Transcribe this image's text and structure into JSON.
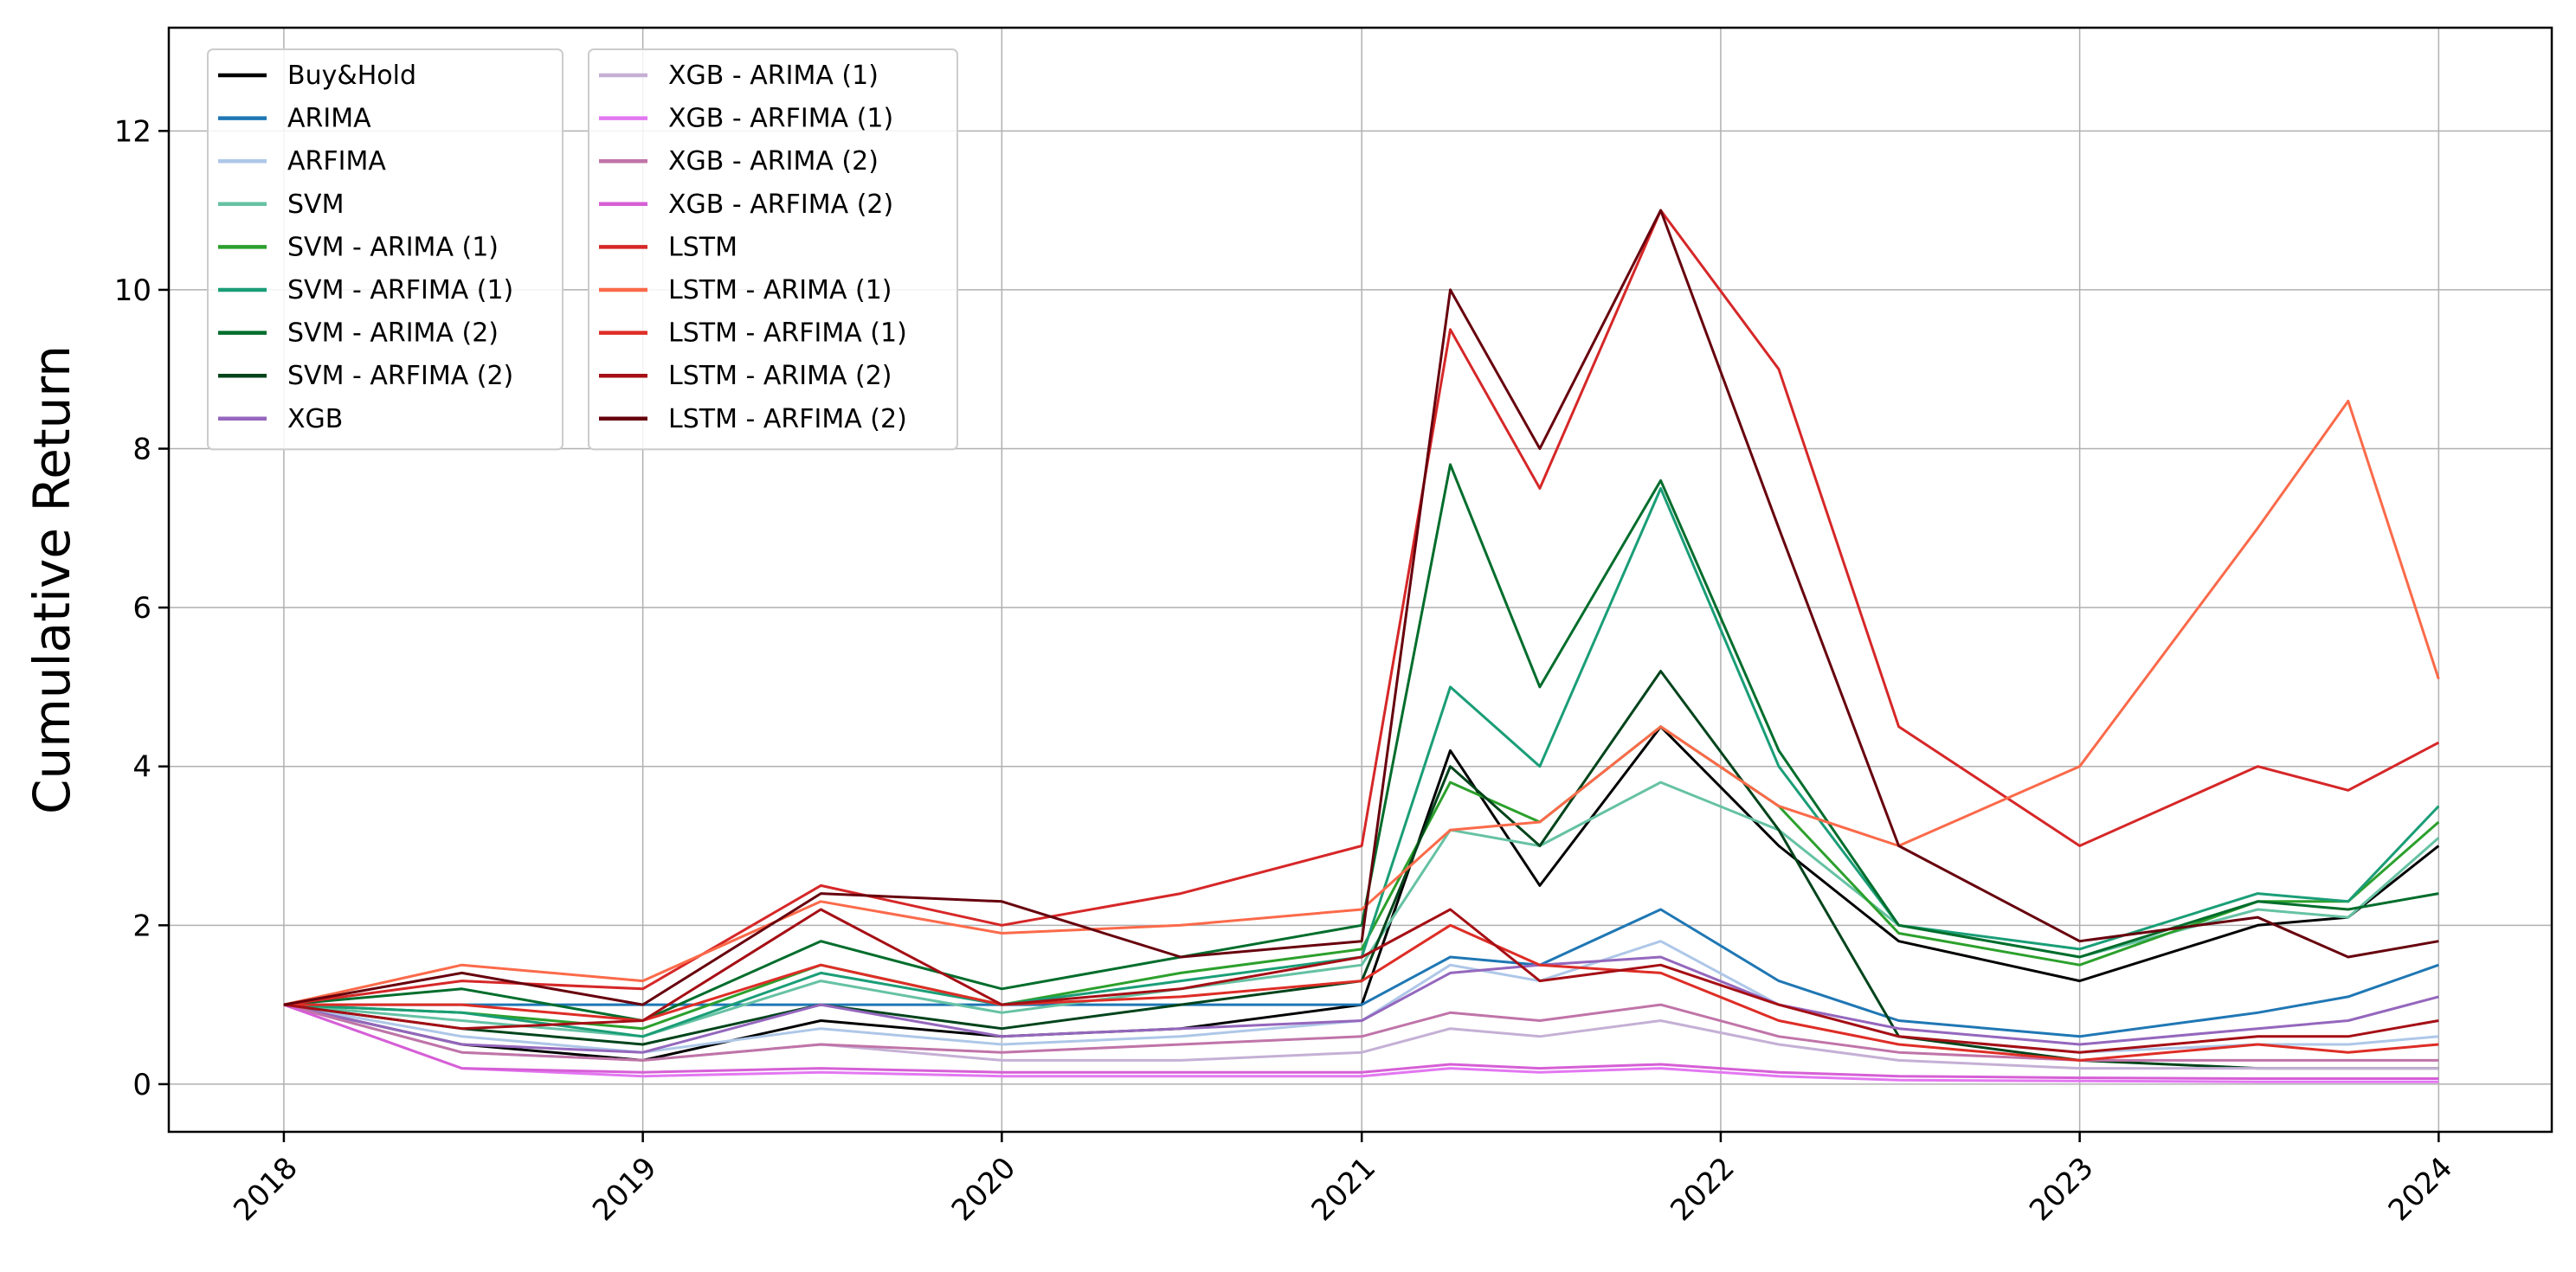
{
  "chart_data": {
    "type": "line",
    "title": "",
    "xlabel": "",
    "ylabel": "Cumulative Return",
    "xlim": [
      "2017-09-06",
      "2024-04-25"
    ],
    "ylim": [
      -0.6,
      13.3
    ],
    "x_ticks": [
      "2018",
      "2019",
      "2020",
      "2021",
      "2022",
      "2023",
      "2024"
    ],
    "y_ticks": [
      0,
      2,
      4,
      6,
      8,
      10,
      12
    ],
    "grid": true,
    "legend_placement": "top-left",
    "x": [
      "2018-01",
      "2018-07",
      "2019-01",
      "2019-07",
      "2020-01",
      "2020-07",
      "2021-01",
      "2021-04",
      "2021-07",
      "2021-11",
      "2022-03",
      "2022-07",
      "2023-01",
      "2023-07",
      "2023-10",
      "2024-01"
    ],
    "series": [
      {
        "name": "Buy&Hold",
        "color": "#000000",
        "values": [
          1.0,
          0.5,
          0.3,
          0.8,
          0.6,
          0.7,
          1.0,
          4.2,
          2.5,
          4.5,
          3.0,
          1.8,
          1.3,
          2.0,
          2.1,
          3.0
        ]
      },
      {
        "name": "ARIMA",
        "color": "#1f77b4",
        "values": [
          1.0,
          1.0,
          1.0,
          1.0,
          1.0,
          1.0,
          1.0,
          1.6,
          1.5,
          2.2,
          1.3,
          0.8,
          0.6,
          0.9,
          1.1,
          1.5
        ]
      },
      {
        "name": "ARFIMA",
        "color": "#aec7e8",
        "values": [
          1.0,
          0.6,
          0.4,
          0.7,
          0.5,
          0.6,
          0.8,
          1.5,
          1.3,
          1.8,
          1.0,
          0.6,
          0.4,
          0.5,
          0.5,
          0.6
        ]
      },
      {
        "name": "SVM",
        "color": "#66c2a4",
        "values": [
          1.0,
          0.8,
          0.6,
          1.3,
          0.9,
          1.2,
          1.5,
          3.2,
          3.0,
          3.8,
          3.2,
          2.0,
          1.6,
          2.2,
          2.1,
          3.1
        ]
      },
      {
        "name": "SVM - ARIMA (1)",
        "color": "#2ca02c",
        "values": [
          1.0,
          0.9,
          0.7,
          1.5,
          1.0,
          1.4,
          1.7,
          3.8,
          3.3,
          4.5,
          3.5,
          1.9,
          1.5,
          2.3,
          2.3,
          3.3
        ]
      },
      {
        "name": "SVM - ARFIMA (1)",
        "color": "#1a9e77",
        "values": [
          1.0,
          0.9,
          0.6,
          1.4,
          1.0,
          1.3,
          1.6,
          5.0,
          4.0,
          7.5,
          4.0,
          2.0,
          1.7,
          2.4,
          2.3,
          3.5
        ]
      },
      {
        "name": "SVM - ARIMA (2)",
        "color": "#006d2c",
        "values": [
          1.0,
          1.2,
          0.8,
          1.8,
          1.2,
          1.6,
          2.0,
          7.8,
          5.0,
          7.6,
          4.2,
          2.0,
          1.6,
          2.3,
          2.2,
          2.4
        ]
      },
      {
        "name": "SVM - ARFIMA (2)",
        "color": "#00441b",
        "values": [
          1.0,
          0.7,
          0.5,
          1.0,
          0.7,
          1.0,
          1.3,
          4.0,
          3.0,
          5.2,
          3.2,
          0.6,
          0.3,
          0.2,
          0.2,
          0.2
        ]
      },
      {
        "name": "XGB",
        "color": "#9467bd",
        "values": [
          1.0,
          0.5,
          0.4,
          1.0,
          0.6,
          0.7,
          0.8,
          1.4,
          1.5,
          1.6,
          1.0,
          0.7,
          0.5,
          0.7,
          0.8,
          1.1
        ]
      },
      {
        "name": "XGB - ARIMA (1)",
        "color": "#c5b0d5",
        "values": [
          1.0,
          0.4,
          0.3,
          0.5,
          0.3,
          0.3,
          0.4,
          0.7,
          0.6,
          0.8,
          0.5,
          0.3,
          0.2,
          0.2,
          0.2,
          0.2
        ]
      },
      {
        "name": "XGB - ARFIMA (1)",
        "color": "#e377f2",
        "values": [
          1.0,
          0.2,
          0.1,
          0.15,
          0.1,
          0.1,
          0.1,
          0.2,
          0.15,
          0.2,
          0.1,
          0.05,
          0.04,
          0.03,
          0.03,
          0.03
        ]
      },
      {
        "name": "XGB - ARIMA (2)",
        "color": "#c074a8",
        "values": [
          1.0,
          0.4,
          0.3,
          0.5,
          0.4,
          0.5,
          0.6,
          0.9,
          0.8,
          1.0,
          0.6,
          0.4,
          0.3,
          0.3,
          0.3,
          0.3
        ]
      },
      {
        "name": "XGB - ARFIMA (2)",
        "color": "#d65fd6",
        "values": [
          1.0,
          0.2,
          0.15,
          0.2,
          0.15,
          0.15,
          0.15,
          0.25,
          0.2,
          0.25,
          0.15,
          0.1,
          0.08,
          0.07,
          0.07,
          0.07
        ]
      },
      {
        "name": "LSTM",
        "color": "#d62728",
        "values": [
          1.0,
          1.3,
          1.2,
          2.5,
          2.0,
          2.4,
          3.0,
          9.5,
          7.5,
          11.0,
          9.0,
          4.5,
          3.0,
          4.0,
          3.7,
          4.3
        ]
      },
      {
        "name": "LSTM - ARIMA (1)",
        "color": "#fb6a4a",
        "values": [
          1.0,
          1.5,
          1.3,
          2.3,
          1.9,
          2.0,
          2.2,
          3.2,
          3.3,
          4.5,
          3.5,
          3.0,
          4.0,
          7.0,
          8.6,
          5.1
        ]
      },
      {
        "name": "LSTM - ARFIMA (1)",
        "color": "#de2d26",
        "values": [
          1.0,
          1.0,
          0.8,
          1.5,
          1.0,
          1.1,
          1.3,
          2.0,
          1.5,
          1.4,
          0.8,
          0.5,
          0.3,
          0.5,
          0.4,
          0.5
        ]
      },
      {
        "name": "LSTM - ARIMA (2)",
        "color": "#a50f15",
        "values": [
          1.0,
          0.7,
          0.8,
          2.2,
          1.0,
          1.2,
          1.6,
          2.2,
          1.3,
          1.5,
          1.0,
          0.6,
          0.4,
          0.6,
          0.6,
          0.8
        ]
      },
      {
        "name": "LSTM - ARFIMA (2)",
        "color": "#67000d",
        "values": [
          1.0,
          1.4,
          1.0,
          2.4,
          2.3,
          1.6,
          1.8,
          10.0,
          8.0,
          11.0,
          7.0,
          3.0,
          1.8,
          2.1,
          1.6,
          1.8
        ]
      }
    ]
  }
}
